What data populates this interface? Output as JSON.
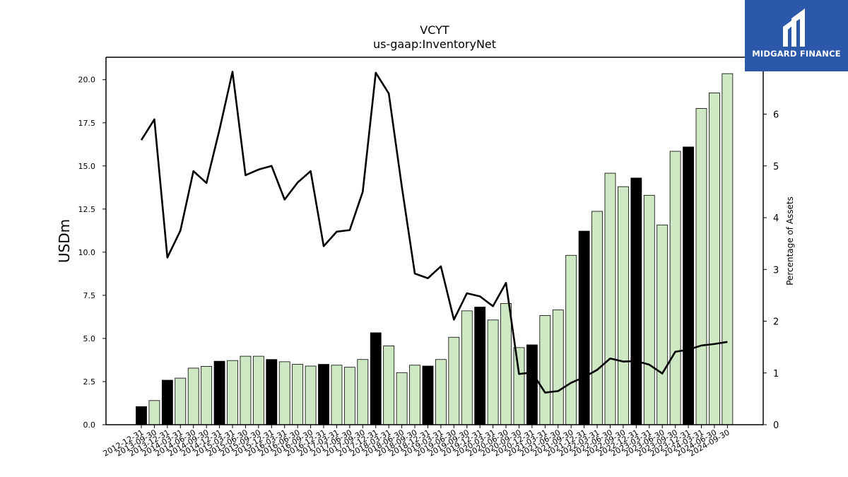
{
  "chart_data": {
    "type": "bar",
    "title": "VCYT",
    "subtitle": "us-gaap:InventoryNet",
    "ylabel": "USDm",
    "y2label": "Percentage of Assets",
    "ylim": [
      0,
      21.3
    ],
    "y2lim": [
      0,
      7.1
    ],
    "yticks": [
      "0.0",
      "2.5",
      "5.0",
      "7.5",
      "10.0",
      "12.5",
      "15.0",
      "17.5",
      "20.0"
    ],
    "y2ticks": [
      "0",
      "1",
      "2",
      "3",
      "4",
      "5",
      "6"
    ],
    "categories": [
      "2012-12-31",
      "2013-09-30",
      "2013-12-31",
      "2014-03-31",
      "2014-06-30",
      "2014-09-30",
      "2014-12-31",
      "2015-03-31",
      "2015-06-30",
      "2015-09-30",
      "2015-12-31",
      "2016-03-31",
      "2016-06-30",
      "2016-09-30",
      "2016-12-31",
      "2017-03-31",
      "2017-06-30",
      "2017-09-30",
      "2017-12-31",
      "2018-03-31",
      "2018-06-30",
      "2018-09-30",
      "2018-12-31",
      "2019-03-31",
      "2019-06-30",
      "2019-09-30",
      "2019-12-31",
      "2020-03-31",
      "2020-06-30",
      "2020-09-30",
      "2020-12-31",
      "2021-03-31",
      "2021-06-30",
      "2021-09-30",
      "2021-12-31",
      "2022-03-31",
      "2022-06-30",
      "2022-09-30",
      "2022-12-31",
      "2023-03-31",
      "2023-06-30",
      "2023-09-30",
      "2023-12-31",
      "2024-03-31",
      "2024-06-30",
      "2024-09-30"
    ],
    "series": [
      {
        "kind": "bar",
        "values": [
          1.05,
          1.4,
          2.58,
          2.7,
          3.28,
          3.38,
          3.68,
          3.72,
          3.97,
          3.97,
          3.78,
          3.65,
          3.5,
          3.4,
          3.5,
          3.45,
          3.33,
          3.78,
          5.33,
          4.57,
          3.02,
          3.45,
          3.4,
          3.78,
          5.07,
          6.6,
          6.82,
          6.07,
          7.03,
          4.47,
          4.63,
          6.33,
          6.65,
          9.82,
          11.22,
          12.37,
          14.58,
          13.8,
          14.3,
          13.3,
          11.58,
          15.85,
          16.1,
          18.33,
          19.23,
          20.35
        ],
        "year_end": [
          true,
          false,
          true,
          false,
          false,
          false,
          true,
          false,
          false,
          false,
          true,
          false,
          false,
          false,
          true,
          false,
          false,
          false,
          true,
          false,
          false,
          false,
          true,
          false,
          false,
          false,
          true,
          false,
          false,
          false,
          true,
          false,
          false,
          false,
          true,
          false,
          false,
          false,
          true,
          false,
          false,
          false,
          true,
          false,
          false,
          false
        ],
        "colors": {
          "year_end": "#000000",
          "quarter": "#cfe8c4"
        }
      },
      {
        "kind": "line",
        "axis": "right",
        "values": [
          5.5,
          5.9,
          3.23,
          3.75,
          4.9,
          4.67,
          5.7,
          6.82,
          4.82,
          4.93,
          5.0,
          4.35,
          4.68,
          4.9,
          3.45,
          3.73,
          3.76,
          4.5,
          6.8,
          6.4,
          4.6,
          2.92,
          2.83,
          3.06,
          2.03,
          2.54,
          2.48,
          2.29,
          2.74,
          0.98,
          1.01,
          0.62,
          0.65,
          0.81,
          0.92,
          1.06,
          1.28,
          1.22,
          1.23,
          1.16,
          0.99,
          1.41,
          1.45,
          1.53,
          1.56,
          1.6
        ],
        "color": "#000000"
      }
    ]
  },
  "logo": {
    "text": "MIDGARD FINANCE",
    "color": "#2b58a8"
  }
}
